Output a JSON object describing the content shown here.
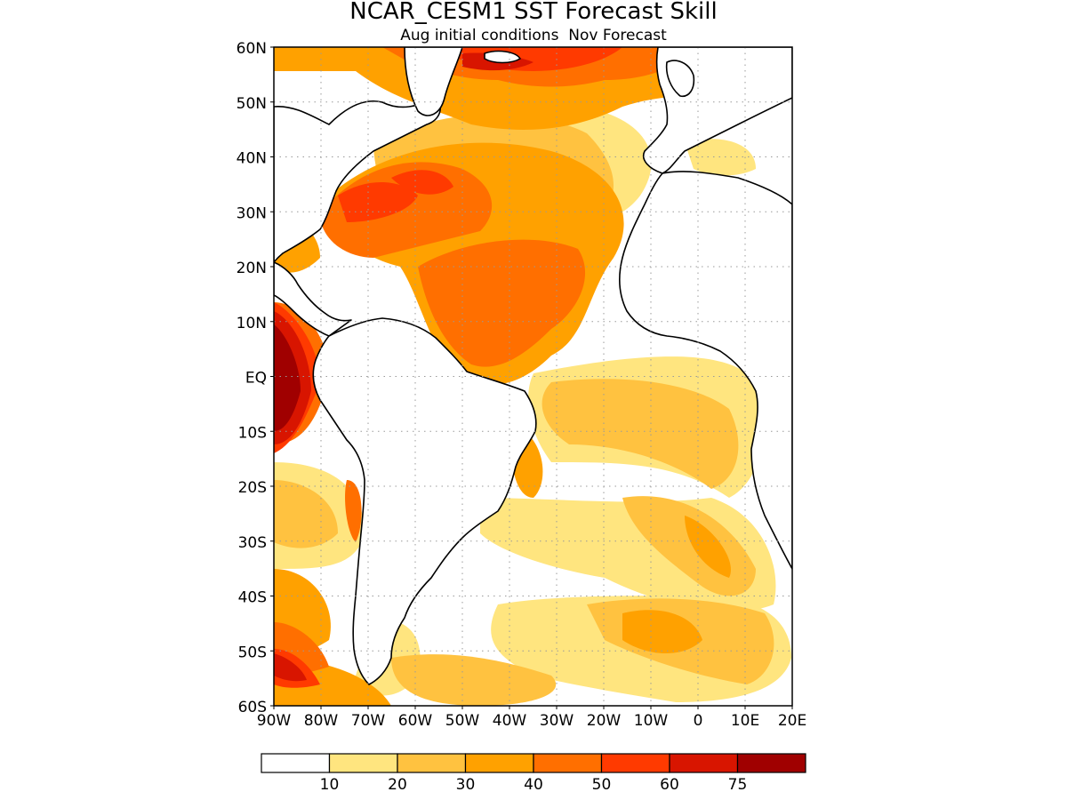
{
  "title": "NCAR_CESM1 SST Forecast Skill",
  "subtitle": "Aug initial conditions  Nov Forecast",
  "lat_labels": [
    "60N",
    "50N",
    "40N",
    "30N",
    "20N",
    "10N",
    "EQ",
    "10S",
    "20S",
    "30S",
    "40S",
    "50S",
    "60S"
  ],
  "lon_labels": [
    "90W",
    "80W",
    "70W",
    "60W",
    "50W",
    "40W",
    "30W",
    "20W",
    "10W",
    "0",
    "10E",
    "20E"
  ],
  "legend": {
    "tick_labels": [
      "10",
      "20",
      "30",
      "40",
      "50",
      "60",
      "75"
    ],
    "colors": [
      "#ffffff",
      "#ffe57f",
      "#ffc240",
      "#ffa100",
      "#ff6f00",
      "#ff3a00",
      "#d81500",
      "#a00000"
    ]
  },
  "map_extent": {
    "lon": [
      -90,
      20
    ],
    "lat": [
      -60,
      60
    ]
  },
  "colors": {
    "land_outline": "#000000",
    "grid": "#9a9a9a"
  }
}
